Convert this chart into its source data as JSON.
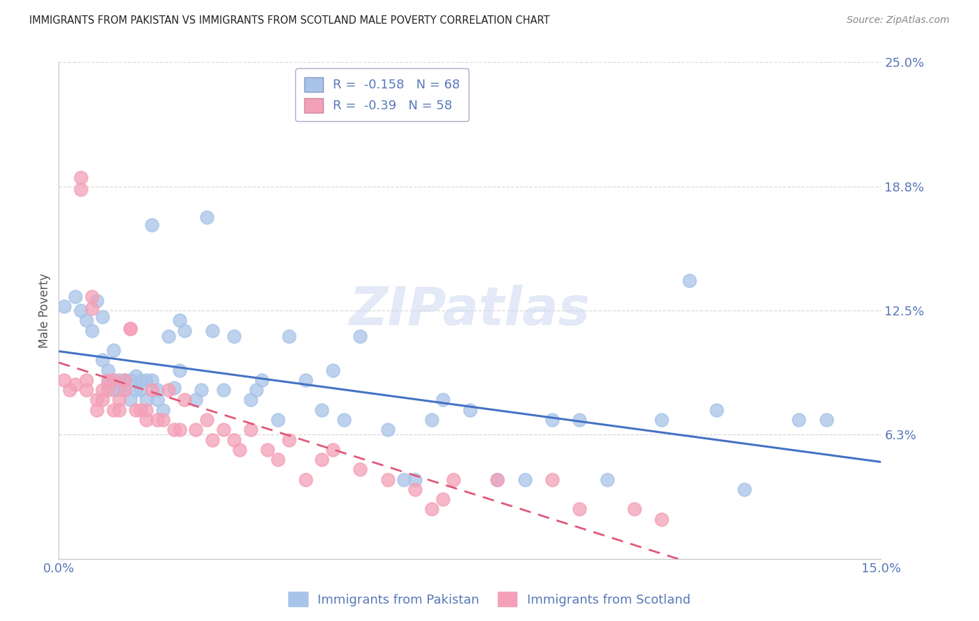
{
  "title": "IMMIGRANTS FROM PAKISTAN VS IMMIGRANTS FROM SCOTLAND MALE POVERTY CORRELATION CHART",
  "source": "Source: ZipAtlas.com",
  "ylabel": "Male Poverty",
  "xlim": [
    0.0,
    0.15
  ],
  "ylim": [
    0.0,
    0.25
  ],
  "yticks": [
    0.0,
    0.0625,
    0.125,
    0.1875,
    0.25
  ],
  "ytick_labels": [
    "",
    "6.3%",
    "12.5%",
    "18.8%",
    "25.0%"
  ],
  "xticks": [
    0.0,
    0.05,
    0.1,
    0.15
  ],
  "xtick_labels": [
    "0.0%",
    "",
    "",
    "15.0%"
  ],
  "pakistan_R": -0.158,
  "pakistan_N": 68,
  "scotland_R": -0.39,
  "scotland_N": 58,
  "pakistan_color": "#a8c4e8",
  "scotland_color": "#f4a0b8",
  "pakistan_line_color": "#4472c4",
  "scotland_line_color": "#e05878",
  "background_color": "#ffffff",
  "grid_color": "#d0d0d0",
  "title_color": "#222222",
  "axis_label_color": "#555555",
  "tick_label_color": "#5878b8",
  "watermark": "ZIPatlas",
  "pakistan_x": [
    0.001,
    0.003,
    0.004,
    0.005,
    0.006,
    0.007,
    0.008,
    0.008,
    0.009,
    0.009,
    0.01,
    0.01,
    0.01,
    0.011,
    0.011,
    0.012,
    0.012,
    0.013,
    0.013,
    0.014,
    0.014,
    0.015,
    0.015,
    0.016,
    0.016,
    0.017,
    0.017,
    0.018,
    0.018,
    0.019,
    0.02,
    0.021,
    0.022,
    0.022,
    0.023,
    0.025,
    0.026,
    0.027,
    0.028,
    0.03,
    0.032,
    0.035,
    0.036,
    0.037,
    0.04,
    0.042,
    0.045,
    0.048,
    0.05,
    0.052,
    0.055,
    0.06,
    0.063,
    0.065,
    0.068,
    0.07,
    0.075,
    0.08,
    0.085,
    0.09,
    0.095,
    0.1,
    0.11,
    0.115,
    0.12,
    0.125,
    0.135,
    0.14
  ],
  "pakistan_y": [
    0.127,
    0.132,
    0.125,
    0.12,
    0.115,
    0.13,
    0.122,
    0.1,
    0.095,
    0.088,
    0.105,
    0.09,
    0.085,
    0.085,
    0.09,
    0.09,
    0.085,
    0.09,
    0.08,
    0.085,
    0.092,
    0.085,
    0.09,
    0.09,
    0.08,
    0.168,
    0.09,
    0.085,
    0.08,
    0.075,
    0.112,
    0.086,
    0.12,
    0.095,
    0.115,
    0.08,
    0.085,
    0.172,
    0.115,
    0.085,
    0.112,
    0.08,
    0.085,
    0.09,
    0.07,
    0.112,
    0.09,
    0.075,
    0.095,
    0.07,
    0.112,
    0.065,
    0.04,
    0.04,
    0.07,
    0.08,
    0.075,
    0.04,
    0.04,
    0.07,
    0.07,
    0.04,
    0.07,
    0.14,
    0.075,
    0.035,
    0.07,
    0.07
  ],
  "scotland_x": [
    0.001,
    0.002,
    0.003,
    0.004,
    0.004,
    0.005,
    0.005,
    0.006,
    0.006,
    0.007,
    0.007,
    0.008,
    0.008,
    0.009,
    0.009,
    0.01,
    0.01,
    0.011,
    0.011,
    0.012,
    0.012,
    0.013,
    0.013,
    0.014,
    0.015,
    0.016,
    0.016,
    0.017,
    0.018,
    0.019,
    0.02,
    0.021,
    0.022,
    0.023,
    0.025,
    0.027,
    0.028,
    0.03,
    0.032,
    0.033,
    0.035,
    0.038,
    0.04,
    0.042,
    0.045,
    0.048,
    0.05,
    0.055,
    0.06,
    0.065,
    0.068,
    0.07,
    0.072,
    0.08,
    0.09,
    0.095,
    0.105,
    0.11
  ],
  "scotland_y": [
    0.09,
    0.085,
    0.088,
    0.192,
    0.186,
    0.09,
    0.085,
    0.132,
    0.126,
    0.08,
    0.075,
    0.085,
    0.08,
    0.09,
    0.085,
    0.075,
    0.09,
    0.08,
    0.075,
    0.09,
    0.085,
    0.116,
    0.116,
    0.075,
    0.075,
    0.07,
    0.075,
    0.085,
    0.07,
    0.07,
    0.085,
    0.065,
    0.065,
    0.08,
    0.065,
    0.07,
    0.06,
    0.065,
    0.06,
    0.055,
    0.065,
    0.055,
    0.05,
    0.06,
    0.04,
    0.05,
    0.055,
    0.045,
    0.04,
    0.035,
    0.025,
    0.03,
    0.04,
    0.04,
    0.04,
    0.025,
    0.025,
    0.02
  ]
}
